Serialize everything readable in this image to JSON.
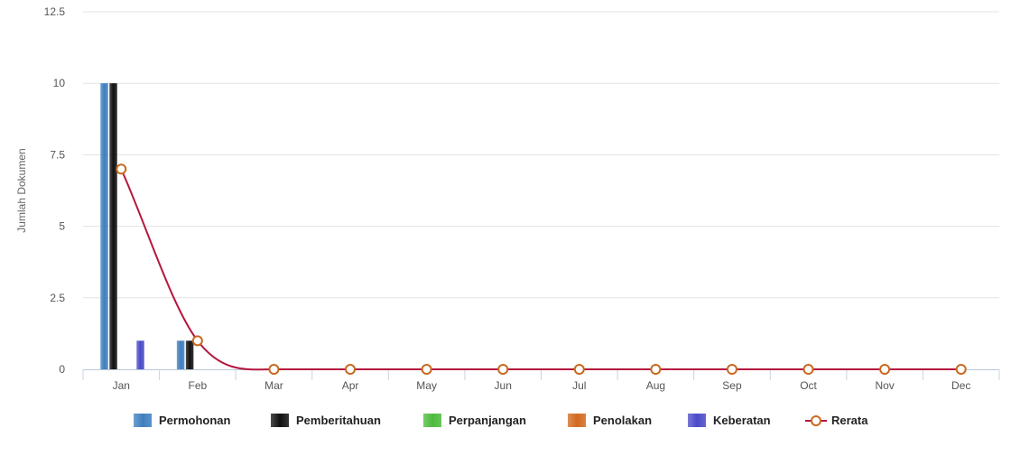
{
  "chart_data": {
    "type": "bar",
    "ylabel": "Jumlah Dokumen",
    "xlabel": "",
    "ylim": [
      0,
      12.5
    ],
    "yticks": [
      "0",
      "2.5",
      "5",
      "7.5",
      "10",
      "12.5"
    ],
    "grid": true,
    "legend_placement": "bottom",
    "categories": [
      "Jan",
      "Feb",
      "Mar",
      "Apr",
      "May",
      "Jun",
      "Jul",
      "Aug",
      "Sep",
      "Oct",
      "Nov",
      "Dec"
    ],
    "series": [
      {
        "name": "Permohonan",
        "type": "bar",
        "color": "#3f7fbf",
        "values": [
          10,
          1,
          0,
          0,
          0,
          0,
          0,
          0,
          0,
          0,
          0,
          0
        ]
      },
      {
        "name": "Pemberitahuan",
        "type": "bar",
        "color": "#111111",
        "values": [
          10,
          1,
          0,
          0,
          0,
          0,
          0,
          0,
          0,
          0,
          0,
          0
        ]
      },
      {
        "name": "Perpanjangan",
        "type": "bar",
        "color": "#4cbb3c",
        "values": [
          0,
          0,
          0,
          0,
          0,
          0,
          0,
          0,
          0,
          0,
          0,
          0
        ]
      },
      {
        "name": "Penolakan",
        "type": "bar",
        "color": "#d2691e",
        "values": [
          0,
          0,
          0,
          0,
          0,
          0,
          0,
          0,
          0,
          0,
          0,
          0
        ]
      },
      {
        "name": "Keberatan",
        "type": "bar",
        "color": "#4b4bc8",
        "values": [
          1,
          0,
          0,
          0,
          0,
          0,
          0,
          0,
          0,
          0,
          0,
          0
        ]
      },
      {
        "name": "Rerata",
        "type": "line",
        "color": "#b5173f",
        "marker_color": "#c8691e",
        "values": [
          7,
          1,
          0,
          0,
          0,
          0,
          0,
          0,
          0,
          0,
          0,
          0
        ]
      }
    ]
  }
}
